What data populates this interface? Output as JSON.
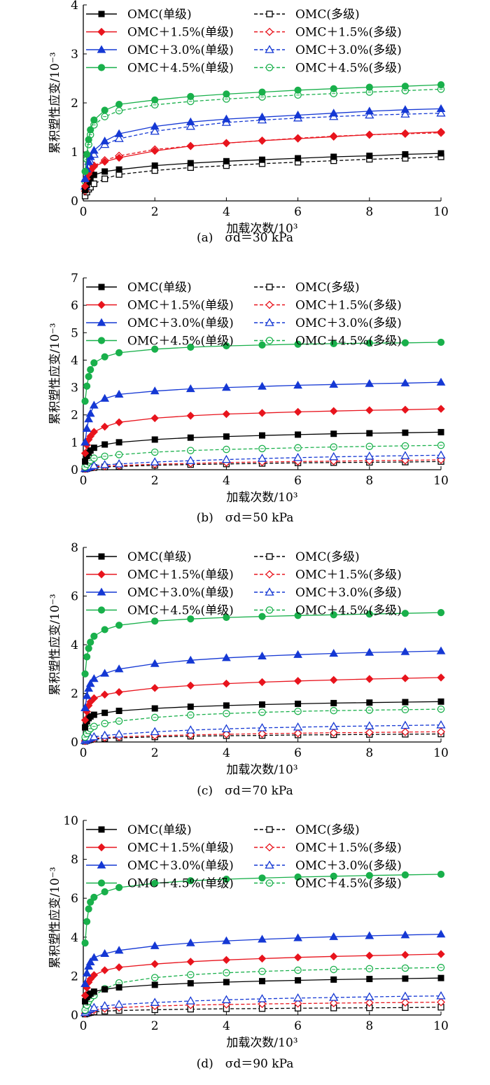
{
  "figure": {
    "legend_entries": [
      {
        "label": "OMC(单级)",
        "color": "#000000",
        "marker": "square",
        "filled": true,
        "dashed": false
      },
      {
        "label": "OMC(多级)",
        "color": "#000000",
        "marker": "square",
        "filled": false,
        "dashed": true
      },
      {
        "label": "OMC＋1.5%(单级)",
        "color": "#e8141d",
        "marker": "diamond",
        "filled": true,
        "dashed": false
      },
      {
        "label": "OMC＋1.5%(多级)",
        "color": "#e8141d",
        "marker": "diamond",
        "filled": false,
        "dashed": true
      },
      {
        "label": "OMC＋3.0%(单级)",
        "color": "#1538d4",
        "marker": "triangle",
        "filled": true,
        "dashed": false
      },
      {
        "label": "OMC＋3.0%(多级)",
        "color": "#1538d4",
        "marker": "triangle",
        "filled": false,
        "dashed": true
      },
      {
        "label": "OMC＋4.5%(单级)",
        "color": "#19b04b",
        "marker": "circle",
        "filled": true,
        "dashed": false
      },
      {
        "label": "OMC＋4.5%(多级)",
        "color": "#19b04b",
        "marker": "circle",
        "filled": false,
        "dashed": true
      }
    ]
  },
  "chart_data": [
    {
      "type": "line",
      "caption": "(a)　σd＝30 kPa",
      "xlabel": "加载次数/10³",
      "ylabel": "累积塑性应变/10⁻³",
      "xlim": [
        0,
        10
      ],
      "ylim": [
        0,
        4
      ],
      "xticks": [
        0,
        2,
        4,
        6,
        8,
        10
      ],
      "yticks": [
        0,
        1,
        2,
        3,
        4
      ],
      "x": [
        0.05,
        0.1,
        0.15,
        0.2,
        0.3,
        0.6,
        1,
        2,
        3,
        4,
        5,
        6,
        7,
        8,
        9,
        10
      ],
      "series": [
        {
          "name": "OMC(单级)",
          "values": [
            0.22,
            0.32,
            0.4,
            0.46,
            0.53,
            0.6,
            0.64,
            0.72,
            0.77,
            0.81,
            0.84,
            0.87,
            0.9,
            0.92,
            0.95,
            0.97
          ]
        },
        {
          "name": "OMC(多级)",
          "values": [
            0.1,
            0.18,
            0.24,
            0.28,
            0.35,
            0.45,
            0.54,
            0.62,
            0.68,
            0.72,
            0.76,
            0.79,
            0.82,
            0.85,
            0.87,
            0.9
          ]
        },
        {
          "name": "OMC＋1.5%(单级)",
          "values": [
            0.3,
            0.45,
            0.55,
            0.62,
            0.7,
            0.8,
            0.88,
            1.02,
            1.12,
            1.18,
            1.23,
            1.27,
            1.31,
            1.35,
            1.38,
            1.41
          ]
        },
        {
          "name": "OMC＋1.5%(多级)",
          "values": [
            0.2,
            0.35,
            0.5,
            0.6,
            0.72,
            0.83,
            0.92,
            1.05,
            1.12,
            1.18,
            1.23,
            1.28,
            1.32,
            1.35,
            1.37,
            1.39
          ]
        },
        {
          "name": "OMC＋3.0%(单级)",
          "values": [
            0.45,
            0.65,
            0.8,
            0.9,
            1.03,
            1.22,
            1.37,
            1.52,
            1.61,
            1.67,
            1.71,
            1.75,
            1.79,
            1.83,
            1.86,
            1.88
          ]
        },
        {
          "name": "OMC＋3.0%(多级)",
          "values": [
            0.3,
            0.5,
            0.68,
            0.8,
            0.95,
            1.15,
            1.27,
            1.42,
            1.52,
            1.6,
            1.65,
            1.69,
            1.72,
            1.75,
            1.77,
            1.79
          ]
        },
        {
          "name": "OMC＋4.5%(单级)",
          "values": [
            0.6,
            0.95,
            1.25,
            1.45,
            1.65,
            1.85,
            1.97,
            2.06,
            2.13,
            2.18,
            2.22,
            2.26,
            2.29,
            2.32,
            2.34,
            2.37
          ]
        },
        {
          "name": "OMC＋4.5%(多级)",
          "values": [
            0.4,
            0.85,
            1.15,
            1.35,
            1.55,
            1.72,
            1.84,
            1.96,
            2.03,
            2.08,
            2.12,
            2.16,
            2.19,
            2.22,
            2.25,
            2.28
          ]
        }
      ]
    },
    {
      "type": "line",
      "caption": "(b)　σd＝50 kPa",
      "xlabel": "加载次数/10³",
      "ylabel": "累积塑性应变/10⁻³",
      "xlim": [
        0,
        10
      ],
      "ylim": [
        0,
        7
      ],
      "xticks": [
        0,
        2,
        4,
        6,
        8,
        10
      ],
      "yticks": [
        0,
        1,
        2,
        3,
        4,
        5,
        6,
        7
      ],
      "x": [
        0.05,
        0.1,
        0.15,
        0.2,
        0.3,
        0.6,
        1,
        2,
        3,
        4,
        5,
        6,
        7,
        8,
        9,
        10
      ],
      "series": [
        {
          "name": "OMC(单级)",
          "values": [
            0.3,
            0.5,
            0.62,
            0.7,
            0.8,
            0.92,
            1.0,
            1.1,
            1.17,
            1.21,
            1.25,
            1.28,
            1.31,
            1.33,
            1.35,
            1.37
          ]
        },
        {
          "name": "OMC(多级)",
          "values": [
            0.02,
            0.04,
            0.06,
            0.07,
            0.08,
            0.1,
            0.12,
            0.16,
            0.19,
            0.21,
            0.23,
            0.25,
            0.26,
            0.27,
            0.28,
            0.3
          ]
        },
        {
          "name": "OMC＋1.5%(单级)",
          "values": [
            0.6,
            0.9,
            1.1,
            1.22,
            1.38,
            1.57,
            1.73,
            1.88,
            1.97,
            2.03,
            2.07,
            2.11,
            2.14,
            2.17,
            2.19,
            2.22
          ]
        },
        {
          "name": "OMC＋1.5%(多级)",
          "values": [
            0.03,
            0.05,
            0.07,
            0.09,
            0.11,
            0.13,
            0.15,
            0.2,
            0.23,
            0.26,
            0.28,
            0.3,
            0.31,
            0.33,
            0.34,
            0.36
          ]
        },
        {
          "name": "OMC＋3.0%(单级)",
          "values": [
            1.0,
            1.5,
            1.85,
            2.05,
            2.35,
            2.6,
            2.75,
            2.87,
            2.95,
            3.0,
            3.04,
            3.08,
            3.11,
            3.14,
            3.16,
            3.19
          ]
        },
        {
          "name": "OMC＋3.0%(多级)",
          "values": [
            0.04,
            0.07,
            0.1,
            0.12,
            0.15,
            0.18,
            0.21,
            0.28,
            0.33,
            0.37,
            0.41,
            0.44,
            0.47,
            0.49,
            0.51,
            0.53
          ]
        },
        {
          "name": "OMC＋4.5%(单级)",
          "values": [
            2.5,
            3.05,
            3.4,
            3.65,
            3.9,
            4.12,
            4.27,
            4.4,
            4.47,
            4.52,
            4.55,
            4.58,
            4.6,
            4.62,
            4.63,
            4.65
          ]
        },
        {
          "name": "OMC＋4.5%(多级)",
          "values": [
            0.1,
            0.2,
            0.28,
            0.34,
            0.42,
            0.49,
            0.55,
            0.64,
            0.7,
            0.74,
            0.77,
            0.8,
            0.83,
            0.85,
            0.87,
            0.89
          ]
        }
      ]
    },
    {
      "type": "line",
      "caption": "(c)　σd＝70 kPa",
      "xlabel": "加载次数/10³",
      "ylabel": "累积塑性应变/10⁻³",
      "xlim": [
        0,
        10
      ],
      "ylim": [
        0,
        8
      ],
      "xticks": [
        0,
        2,
        4,
        6,
        8,
        10
      ],
      "yticks": [
        0,
        2,
        4,
        6,
        8
      ],
      "x": [
        0.05,
        0.1,
        0.15,
        0.2,
        0.3,
        0.6,
        1,
        2,
        3,
        4,
        5,
        6,
        7,
        8,
        9,
        10
      ],
      "series": [
        {
          "name": "OMC(单级)",
          "values": [
            0.6,
            0.85,
            0.98,
            1.05,
            1.12,
            1.2,
            1.28,
            1.38,
            1.45,
            1.5,
            1.54,
            1.57,
            1.6,
            1.62,
            1.64,
            1.66
          ]
        },
        {
          "name": "OMC(多级)",
          "values": [
            0.03,
            0.06,
            0.08,
            0.1,
            0.12,
            0.15,
            0.17,
            0.21,
            0.24,
            0.26,
            0.27,
            0.29,
            0.3,
            0.31,
            0.32,
            0.33
          ]
        },
        {
          "name": "OMC＋1.5%(单级)",
          "values": [
            0.9,
            1.25,
            1.5,
            1.65,
            1.8,
            1.95,
            2.05,
            2.22,
            2.32,
            2.4,
            2.46,
            2.51,
            2.55,
            2.59,
            2.62,
            2.65
          ]
        },
        {
          "name": "OMC＋1.5%(多级)",
          "values": [
            0.04,
            0.07,
            0.1,
            0.12,
            0.15,
            0.18,
            0.21,
            0.26,
            0.29,
            0.32,
            0.34,
            0.36,
            0.38,
            0.39,
            0.41,
            0.42
          ]
        },
        {
          "name": "OMC＋3.0%(单级)",
          "values": [
            1.4,
            1.9,
            2.2,
            2.4,
            2.6,
            2.82,
            3.0,
            3.22,
            3.36,
            3.46,
            3.53,
            3.59,
            3.64,
            3.68,
            3.71,
            3.74
          ]
        },
        {
          "name": "OMC＋3.0%(多级)",
          "values": [
            0.06,
            0.1,
            0.14,
            0.17,
            0.21,
            0.27,
            0.32,
            0.42,
            0.49,
            0.54,
            0.58,
            0.61,
            0.64,
            0.66,
            0.68,
            0.7
          ]
        },
        {
          "name": "OMC＋4.5%(单级)",
          "values": [
            2.8,
            3.5,
            3.85,
            4.1,
            4.35,
            4.62,
            4.8,
            4.97,
            5.06,
            5.12,
            5.16,
            5.2,
            5.23,
            5.26,
            5.29,
            5.32
          ]
        },
        {
          "name": "OMC＋4.5%(多级)",
          "values": [
            0.2,
            0.35,
            0.47,
            0.55,
            0.64,
            0.76,
            0.86,
            1.01,
            1.11,
            1.17,
            1.22,
            1.26,
            1.29,
            1.31,
            1.33,
            1.35
          ]
        }
      ]
    },
    {
      "type": "line",
      "caption": "(d)　σd＝90 kPa",
      "xlabel": "加载次数/10³",
      "ylabel": "累积塑性应变/10⁻³",
      "xlim": [
        0,
        10
      ],
      "ylim": [
        0,
        10
      ],
      "xticks": [
        0,
        2,
        4,
        6,
        8,
        10
      ],
      "yticks": [
        0,
        2,
        4,
        6,
        8,
        10
      ],
      "x": [
        0.05,
        0.1,
        0.15,
        0.2,
        0.3,
        0.6,
        1,
        2,
        3,
        4,
        5,
        6,
        7,
        8,
        9,
        10
      ],
      "series": [
        {
          "name": "OMC(单级)",
          "values": [
            0.7,
            0.92,
            1.03,
            1.1,
            1.2,
            1.32,
            1.42,
            1.55,
            1.63,
            1.69,
            1.74,
            1.78,
            1.82,
            1.85,
            1.87,
            1.9
          ]
        },
        {
          "name": "OMC(多级)",
          "values": [
            0.05,
            0.08,
            0.11,
            0.13,
            0.16,
            0.2,
            0.23,
            0.27,
            0.3,
            0.32,
            0.33,
            0.35,
            0.36,
            0.37,
            0.38,
            0.4
          ]
        },
        {
          "name": "OMC＋1.5%(单级)",
          "values": [
            1.0,
            1.4,
            1.68,
            1.85,
            2.05,
            2.3,
            2.45,
            2.62,
            2.74,
            2.83,
            2.9,
            2.96,
            3.01,
            3.05,
            3.09,
            3.13
          ]
        },
        {
          "name": "OMC＋1.5%(多级)",
          "values": [
            0.08,
            0.13,
            0.18,
            0.21,
            0.26,
            0.33,
            0.38,
            0.46,
            0.51,
            0.54,
            0.57,
            0.59,
            0.61,
            0.63,
            0.64,
            0.66
          ]
        },
        {
          "name": "OMC＋3.0%(单级)",
          "values": [
            1.6,
            2.15,
            2.5,
            2.72,
            2.95,
            3.15,
            3.32,
            3.55,
            3.7,
            3.81,
            3.89,
            3.96,
            4.02,
            4.07,
            4.11,
            4.15
          ]
        },
        {
          "name": "OMC＋3.0%(多级)",
          "values": [
            0.12,
            0.2,
            0.27,
            0.32,
            0.38,
            0.47,
            0.54,
            0.64,
            0.72,
            0.78,
            0.83,
            0.87,
            0.9,
            0.93,
            0.96,
            0.98
          ]
        },
        {
          "name": "OMC＋4.5%(单级)",
          "values": [
            3.7,
            4.8,
            5.45,
            5.8,
            6.05,
            6.33,
            6.55,
            6.77,
            6.9,
            6.98,
            7.04,
            7.09,
            7.13,
            7.17,
            7.2,
            7.23
          ]
        },
        {
          "name": "OMC＋4.5%(多级)",
          "values": [
            0.25,
            0.5,
            0.7,
            0.85,
            1.0,
            1.35,
            1.65,
            1.92,
            2.07,
            2.17,
            2.24,
            2.3,
            2.34,
            2.38,
            2.41,
            2.44
          ]
        }
      ]
    }
  ]
}
